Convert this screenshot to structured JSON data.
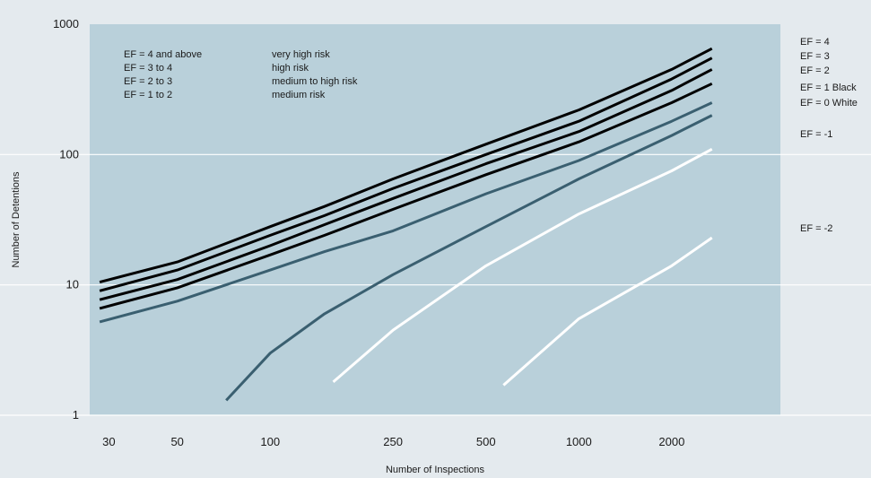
{
  "chart_data": {
    "type": "line",
    "title": "",
    "xlabel": "Number of Inspections",
    "ylabel": "Number of Detentions",
    "xscale": "log",
    "yscale": "log",
    "xlim": [
      26,
      4500
    ],
    "ylim": [
      1,
      1000
    ],
    "x_ticks": [
      {
        "value": 30,
        "label": "30"
      },
      {
        "value": 50,
        "label": "50"
      },
      {
        "value": 100,
        "label": "100"
      },
      {
        "value": 250,
        "label": "250"
      },
      {
        "value": 500,
        "label": "500"
      },
      {
        "value": 1000,
        "label": "1000"
      },
      {
        "value": 2000,
        "label": "2000"
      }
    ],
    "y_ticks": [
      {
        "value": 1,
        "label": "1"
      },
      {
        "value": 10,
        "label": "10"
      },
      {
        "value": 100,
        "label": "100"
      },
      {
        "value": 1000,
        "label": "1000"
      }
    ],
    "grid": true,
    "legend": "right",
    "risk_notes": [
      {
        "ef": "EF = 4 and above",
        "risk": "very high risk"
      },
      {
        "ef": "EF = 3 to 4",
        "risk": "high risk"
      },
      {
        "ef": "EF = 2 to 3",
        "risk": "medium to high risk"
      },
      {
        "ef": "EF = 1 to 2",
        "risk": "medium risk"
      }
    ],
    "series": [
      {
        "name": "EF = 4",
        "color": "#000000",
        "x": [
          28,
          50,
          100,
          150,
          250,
          500,
          1000,
          2000,
          2700
        ],
        "y": [
          10.5,
          15,
          28,
          40,
          65,
          120,
          220,
          450,
          650
        ]
      },
      {
        "name": "EF = 3",
        "color": "#000000",
        "x": [
          28,
          50,
          100,
          150,
          250,
          500,
          1000,
          2000,
          2700
        ],
        "y": [
          9,
          13,
          24,
          34,
          55,
          100,
          180,
          380,
          550
        ]
      },
      {
        "name": "EF = 2",
        "color": "#000000",
        "x": [
          28,
          50,
          100,
          150,
          250,
          500,
          1000,
          2000,
          2700
        ],
        "y": [
          7.7,
          11,
          20,
          29,
          46,
          85,
          150,
          310,
          450
        ]
      },
      {
        "name": "EF = 1 Black",
        "color": "#000000",
        "x": [
          28,
          50,
          100,
          150,
          250,
          500,
          1000,
          2000,
          2700
        ],
        "y": [
          6.6,
          9.5,
          17,
          24,
          38,
          70,
          125,
          250,
          350
        ]
      },
      {
        "name": "EF = 0 White",
        "color": "#3a5f70",
        "x": [
          28,
          50,
          100,
          150,
          250,
          500,
          1000,
          2000,
          2700
        ],
        "y": [
          5.2,
          7.5,
          13,
          18,
          26,
          50,
          90,
          180,
          250
        ]
      },
      {
        "name": "EF = -1",
        "color": "#3a5f70",
        "x": [
          72,
          100,
          150,
          250,
          500,
          1000,
          2000,
          2700
        ],
        "y": [
          1.3,
          3,
          6,
          12,
          28,
          65,
          140,
          200
        ]
      },
      {
        "name": "",
        "color": "#ffffff",
        "x": [
          160,
          250,
          500,
          1000,
          2000,
          2700
        ],
        "y": [
          1.8,
          4.5,
          14,
          35,
          75,
          110
        ]
      },
      {
        "name": "EF = -2",
        "color": "#ffffff",
        "x": [
          570,
          1000,
          2000,
          2700
        ],
        "y": [
          1.7,
          5.5,
          14,
          23
        ]
      }
    ]
  }
}
